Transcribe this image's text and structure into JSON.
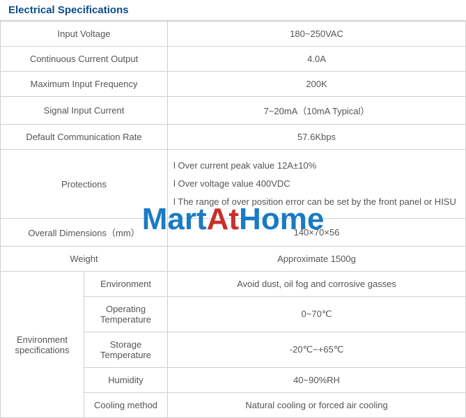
{
  "heading": "Electrical Specifications",
  "rows": {
    "input_voltage_label": "Input Voltage",
    "input_voltage_value": "180~250VAC",
    "cont_current_label": "Continuous Current Output",
    "cont_current_value": "4.0A",
    "max_freq_label": "Maximum Input Frequency",
    "max_freq_value": "200K",
    "signal_current_label": "Signal Input Current",
    "signal_current_value": "7~20mA（10mA Typical）",
    "comm_rate_label": "Default Communication Rate",
    "comm_rate_value": "57.6Kbps",
    "protections_label": "Protections",
    "protections_line1": "l Over current peak value 12A±10%",
    "protections_line2": "l Over voltage value 400VDC",
    "protections_line3": "l The range of over position error  can be set by the  front panel or HISU",
    "dimensions_label": "Overall Dimensions（mm）",
    "dimensions_value": "140×70×56",
    "weight_label": "Weight",
    "weight_value": "Approximate 1500g",
    "env_spec_label": "Environment specifications",
    "env_environment_label": "Environment",
    "env_environment_value": "Avoid dust, oil fog and corrosive gasses",
    "env_optemp_label": "Operating Temperature",
    "env_optemp_value": "0~70℃",
    "env_storage_label": "Storage Temperature",
    "env_storage_value": "-20℃~+65℃",
    "env_humidity_label": "Humidity",
    "env_humidity_value": "40~90%RH",
    "env_cooling_label": "Cooling method",
    "env_cooling_value": "Natural cooling or forced air cooling"
  },
  "watermark": {
    "part1": "Mart",
    "part2": "At",
    "part3": "Home"
  },
  "colors": {
    "heading_color": "#0a4d8c",
    "border_color": "#d0d0d0",
    "text_color": "#555555",
    "watermark_blue": "#1a7bc4",
    "watermark_red": "#c9302c"
  }
}
